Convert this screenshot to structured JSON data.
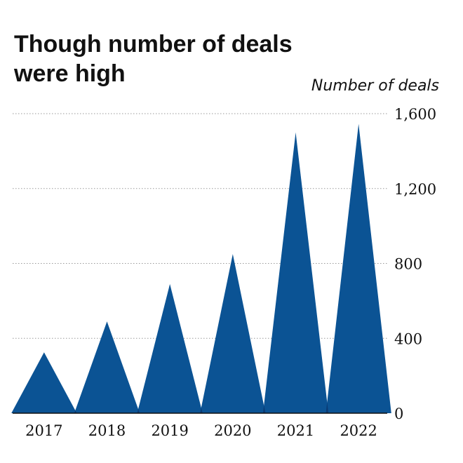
{
  "title": "Though number of deals were high",
  "chart_data": {
    "type": "area",
    "ylabel": "Number of deals",
    "categories": [
      "2017",
      "2018",
      "2019",
      "2020",
      "2021",
      "2022"
    ],
    "values": [
      325,
      490,
      690,
      850,
      1500,
      1545
    ],
    "ylim": [
      0,
      1600
    ],
    "yticks": [
      "0",
      "400",
      "800",
      "1,200",
      "1,600"
    ],
    "grid": true,
    "colors": {
      "fill": "#0b5394",
      "overlap": "#0a3a73",
      "grid": "#9a9a9a",
      "axis": "#111111"
    }
  }
}
